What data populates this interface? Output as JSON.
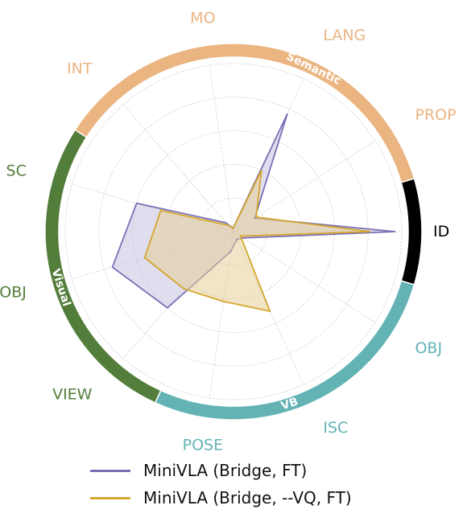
{
  "chart_data": {
    "type": "radar",
    "axes": [
      {
        "label": "ID",
        "group": "ID"
      },
      {
        "label": "PROP",
        "group": "Semantic"
      },
      {
        "label": "LANG",
        "group": "Semantic"
      },
      {
        "label": "MO",
        "group": "Semantic"
      },
      {
        "label": "INT",
        "group": "Semantic"
      },
      {
        "label": "SC",
        "group": "Visual"
      },
      {
        "label": "OBJ",
        "group": "Visual"
      },
      {
        "label": "VIEW",
        "group": "Visual"
      },
      {
        "label": "POSE",
        "group": "VB"
      },
      {
        "label": "ISC",
        "group": "VB"
      },
      {
        "label": "OBJ",
        "group": "VB"
      }
    ],
    "groups": [
      {
        "name": "Semantic",
        "color": "#ebb582",
        "label_color": "#ffffff"
      },
      {
        "name": "Visual",
        "color": "#537d3b",
        "label_color": "#ffffff"
      },
      {
        "name": "VB",
        "color": "#63b3b5",
        "label_color": "#ffffff"
      },
      {
        "name": "ID",
        "color": "#000000",
        "label_color": "#000000"
      }
    ],
    "rmax": 1.0,
    "grid": true,
    "series": [
      {
        "name": "MiniVLA (Bridge, FT)",
        "color": "#7b70b5",
        "fill": "#c5c1e0",
        "values": [
          0.96,
          0.15,
          0.77,
          0.02,
          0.07,
          0.6,
          0.75,
          0.6,
          0.12,
          0.05,
          0.07
        ]
      },
      {
        "name": "MiniVLA (Bridge, --VQ, FT)",
        "color": "#d4a72c",
        "fill": "#e8cd98",
        "values": [
          0.81,
          0.16,
          0.4,
          0.02,
          0.05,
          0.45,
          0.55,
          0.45,
          0.42,
          0.52,
          0.05
        ]
      }
    ],
    "legend_position": "bottom"
  }
}
